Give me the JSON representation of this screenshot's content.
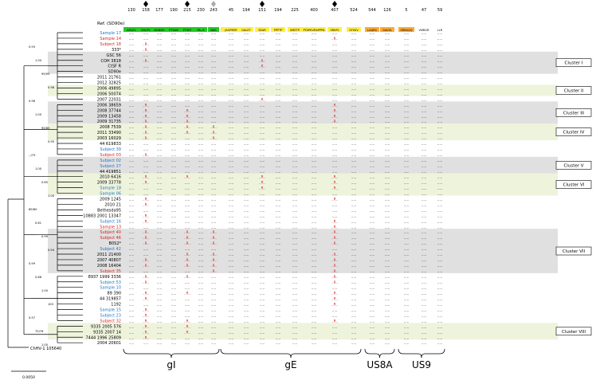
{
  "reference_label": "Ref. (SD90e)",
  "position_numbers": [
    "130",
    "158",
    "177",
    "190",
    "215",
    "230",
    "243",
    "45",
    "194",
    "151",
    "194",
    "225",
    "400",
    "407",
    "524",
    "544",
    "126",
    "5",
    "47",
    "59"
  ],
  "motifs": [
    {
      "text": "ARQTL",
      "color": "#22cc22"
    },
    {
      "text": "KSLPV",
      "color": "#22cc22"
    },
    {
      "text": "NGNDV",
      "color": "#22cc22"
    },
    {
      "text": "PTSAR",
      "color": "#22cc22"
    },
    {
      "text": "FTSFE",
      "color": "#22cc22"
    },
    {
      "text": "PA--S",
      "color": "#22cc22"
    },
    {
      "text": "NAS",
      "color": "#22cc22"
    },
    {
      "text": "JAGPEER",
      "color": "#ffee44"
    },
    {
      "text": "GALET",
      "color": "#ffee44"
    },
    {
      "text": "SEAR",
      "color": "#ffee44"
    },
    {
      "text": "PPPTP",
      "color": "#ffee44"
    },
    {
      "text": "SMETP",
      "color": "#ffee44"
    },
    {
      "text": "PTAPKVRAPPPA",
      "color": "#ffee44"
    },
    {
      "text": "SRKPL",
      "color": "#ffee44"
    },
    {
      "text": "SYSSV",
      "color": "#ffee44"
    },
    {
      "text": "LAARS",
      "color": "#ffaa33"
    },
    {
      "text": "GAVSL",
      "color": "#ffaa33"
    },
    {
      "text": "SRRAQQ",
      "color": "#ffaa33"
    },
    {
      "text": "VNRGR",
      "color": "#ffffff"
    },
    {
      "text": "LLR",
      "color": "#ffffff"
    }
  ],
  "markers": [
    {
      "motif": 1,
      "color": "#000000"
    },
    {
      "motif": 4,
      "color": "#000000"
    },
    {
      "motif": 6,
      "color": "#aaaaaa"
    },
    {
      "motif": 9,
      "color": "#000000"
    },
    {
      "motif": 13,
      "color": "#000000"
    }
  ],
  "taxa": [
    {
      "name": "Sample 17",
      "color": "#2277cc"
    },
    {
      "name": "Sample 14",
      "color": "#dd2222"
    },
    {
      "name": "Subject 18",
      "color": "#dd2222"
    },
    {
      "name": "333*",
      "color": "#000000"
    },
    {
      "name": "GSC 56",
      "color": "#000000"
    },
    {
      "name": "COH 3818",
      "color": "#000000"
    },
    {
      "name": "CtSF R",
      "color": "#000000"
    },
    {
      "name": "SD90e",
      "color": "#000000"
    },
    {
      "name": "2011 21761",
      "color": "#000000"
    },
    {
      "name": "2012 32825",
      "color": "#000000"
    },
    {
      "name": "2006 49895",
      "color": "#000000"
    },
    {
      "name": "2006 50074",
      "color": "#000000"
    },
    {
      "name": "2007 22031",
      "color": "#000000"
    },
    {
      "name": "2006 38659",
      "color": "#000000"
    },
    {
      "name": "2008 37744",
      "color": "#000000"
    },
    {
      "name": "2009 13458",
      "color": "#000000"
    },
    {
      "name": "2009 31735",
      "color": "#000000"
    },
    {
      "name": "2008 7539",
      "color": "#000000"
    },
    {
      "name": "2011 33490",
      "color": "#000000"
    },
    {
      "name": "2003 16029",
      "color": "#000000"
    },
    {
      "name": "44 619833",
      "color": "#000000"
    },
    {
      "name": "Subject 39",
      "color": "#2277cc"
    },
    {
      "name": "Subject 03",
      "color": "#dd2222"
    },
    {
      "name": "Subject 02",
      "color": "#2277cc"
    },
    {
      "name": "Subject 27",
      "color": "#2277cc"
    },
    {
      "name": "44 419851",
      "color": "#000000"
    },
    {
      "name": "2010 6416",
      "color": "#000000"
    },
    {
      "name": "2009 33778",
      "color": "#000000"
    },
    {
      "name": "Sample 18",
      "color": "#2277cc"
    },
    {
      "name": "Sample 06",
      "color": "#2277cc"
    },
    {
      "name": "2009 1245",
      "color": "#000000"
    },
    {
      "name": "2010 21",
      "color": "#000000"
    },
    {
      "name": "Bethesda95",
      "color": "#000000"
    },
    {
      "name": "10883 2001 13347",
      "color": "#000000"
    },
    {
      "name": "Subject 16",
      "color": "#2277cc"
    },
    {
      "name": "Sample 13",
      "color": "#dd2222"
    },
    {
      "name": "Subject 40",
      "color": "#dd2222"
    },
    {
      "name": "Subject 46",
      "color": "#dd2222"
    },
    {
      "name": "B0S2*",
      "color": "#000000"
    },
    {
      "name": "Subject 42",
      "color": "#2277cc"
    },
    {
      "name": "2011 21400",
      "color": "#000000"
    },
    {
      "name": "2007 40807",
      "color": "#000000"
    },
    {
      "name": "2008 16404",
      "color": "#000000"
    },
    {
      "name": "Subject 35",
      "color": "#dd2222"
    },
    {
      "name": "8937 1999 3336",
      "color": "#000000"
    },
    {
      "name": "Subject 53",
      "color": "#2277cc"
    },
    {
      "name": "Sample 10",
      "color": "#2277cc"
    },
    {
      "name": "89 390",
      "color": "#000000"
    },
    {
      "name": "44 319857",
      "color": "#000000"
    },
    {
      "name": "1192",
      "color": "#000000"
    },
    {
      "name": "Sample 15",
      "color": "#2277cc"
    },
    {
      "name": "Subject 23",
      "color": "#2277cc"
    },
    {
      "name": "Subject 32",
      "color": "#dd2222"
    },
    {
      "name": "9335 2005 576",
      "color": "#000000"
    },
    {
      "name": "9335 2007 14",
      "color": "#000000"
    },
    {
      "name": "7444 1996 25809",
      "color": "#000000"
    },
    {
      "name": "2004 20601",
      "color": "#000000"
    }
  ],
  "outgroup": "ChHV-1 105640",
  "scale_bar": "0.0050",
  "clusters": [
    {
      "label": "Cluster I",
      "from": 4,
      "to": 7,
      "band": "#e0e0e0"
    },
    {
      "label": "Cluster II",
      "from": 10,
      "to": 11,
      "band": "#eef3dc"
    },
    {
      "label": "Cluster III",
      "from": 13,
      "to": 16,
      "band": "#e0e0e0"
    },
    {
      "label": "Cluster IV",
      "from": 17,
      "to": 19,
      "band": "#eef3dc"
    },
    {
      "label": "Cluster V",
      "from": 23,
      "to": 25,
      "band": "#e0e0e0"
    },
    {
      "label": "Cluster VI",
      "from": 26,
      "to": 29,
      "band": "#eef3dc"
    },
    {
      "label": "Cluster VII",
      "from": 36,
      "to": 43,
      "band": "#e0e0e0"
    },
    {
      "label": "Cluster VIII",
      "from": 53,
      "to": 55,
      "band": "#eef3dc"
    }
  ],
  "bootstrap_labels": [
    "0.93",
    "1.00",
    "99/93",
    "0.98",
    "0.98",
    "1.00",
    "95/85",
    "0.95",
    "--/75",
    "1.00",
    "0.85",
    "1.00",
    "89/80",
    "0.81",
    "0.99",
    "0.94",
    "0.99",
    "0.88",
    "1.00",
    "100",
    "0.97",
    "70/76",
    "1.00"
  ],
  "genes": [
    {
      "name": "gI",
      "from": 0,
      "to": 6
    },
    {
      "name": "gE",
      "from": 7,
      "to": 14
    },
    {
      "name": "US8A",
      "from": 15,
      "to": 16
    },
    {
      "name": "US9",
      "from": 17,
      "to": 19
    }
  ]
}
